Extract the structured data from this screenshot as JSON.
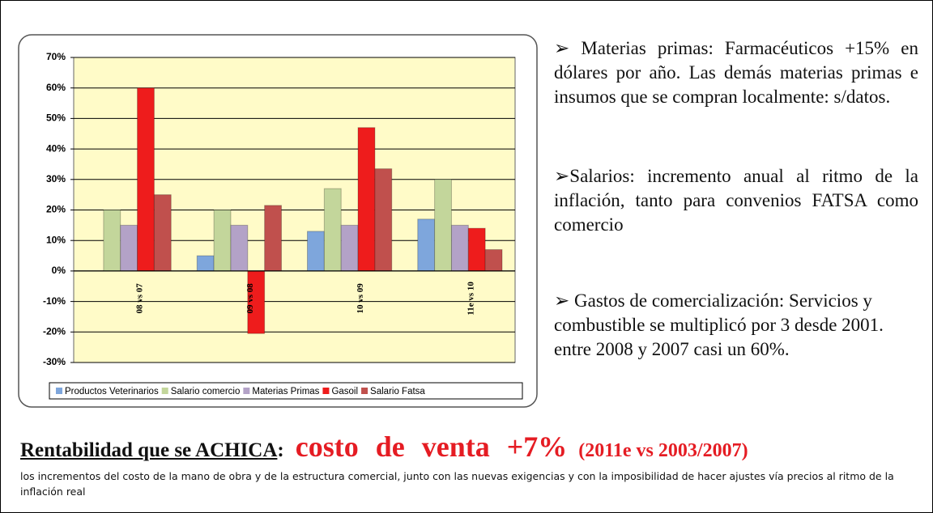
{
  "chart_data": {
    "type": "bar",
    "categories": [
      "08 vs 07",
      "09 vs 08",
      "10 vs 09",
      "11e vs 10"
    ],
    "series": [
      {
        "name": "Productos Veterinarios",
        "color": "#7ea6dc",
        "values": [
          null,
          5,
          13,
          17
        ]
      },
      {
        "name": "Salario comercio",
        "color": "#c3d69b",
        "values": [
          20,
          20,
          27,
          30
        ]
      },
      {
        "name": "Materias Primas",
        "color": "#b3a2c7",
        "values": [
          15,
          15,
          15,
          15
        ]
      },
      {
        "name": "Gasoil",
        "color": "#ee1c1c",
        "values": [
          60,
          -20.5,
          47,
          14
        ]
      },
      {
        "name": "Salario Fatsa",
        "color": "#c0504d",
        "values": [
          25,
          21.5,
          33.5,
          7
        ]
      }
    ],
    "ylim": [
      -30,
      70
    ],
    "yticks": [
      {
        "value": -30,
        "label": "-30%"
      },
      {
        "value": -20,
        "label": "-20%"
      },
      {
        "value": -10,
        "label": "-10%"
      },
      {
        "value": 0,
        "label": "0%"
      },
      {
        "value": 10,
        "label": "10%"
      },
      {
        "value": 20,
        "label": "20%"
      },
      {
        "value": 30,
        "label": "30%"
      },
      {
        "value": 40,
        "label": "40%"
      },
      {
        "value": 50,
        "label": "50%"
      },
      {
        "value": 60,
        "label": "60%"
      },
      {
        "value": 70,
        "label": "70%"
      }
    ],
    "grid": true,
    "legend": "bottom"
  },
  "notes": [
    "➢ Materias primas: Farmacéuticos +15% en dólares por año. Las demás materias primas e insumos que se compran localmente: s/datos.",
    "➢Salarios: incremento anual al ritmo de la inflación, tanto para convenios FATSA como comercio",
    "➢ Gastos de comercialización: Servicios y combustible se multiplicó por 3 desde 2001. entre 2008 y 2007 casi un 60%."
  ],
  "headline": {
    "title": "Rentabilidad que se ACHICA",
    "colon": ":",
    "highlight": "costo de venta +7%",
    "period": "(2011e vs 2003/2007)"
  },
  "footnote": "los incrementos del costo de la mano de obra y de la estructura comercial, junto con las nuevas exigencias y con la imposibilidad de hacer ajustes vía precios al ritmo de la inflación real"
}
